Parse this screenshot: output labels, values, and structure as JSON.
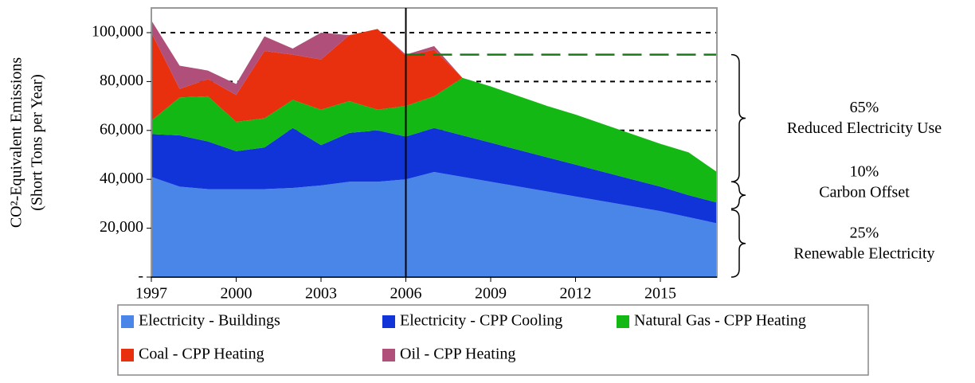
{
  "chart_data": {
    "type": "stacked_area",
    "y_label": [
      "CO²-Equivalent Emissions",
      "(Short Tons per Year)"
    ],
    "x": [
      1997,
      1998,
      1999,
      2000,
      2001,
      2002,
      2003,
      2004,
      2005,
      2006,
      2007,
      2008,
      2009,
      2010,
      2011,
      2012,
      2013,
      2014,
      2015,
      2016,
      2017
    ],
    "xlim": [
      1997,
      2017
    ],
    "xticks": [
      1997,
      2000,
      2003,
      2006,
      2009,
      2012,
      2015
    ],
    "ylim": [
      0,
      100000
    ],
    "yticks": [
      {
        "value": 0,
        "label": "-"
      },
      {
        "value": 20000,
        "label": "20,000"
      },
      {
        "value": 40000,
        "label": "40,000"
      },
      {
        "value": 60000,
        "label": "60,000"
      },
      {
        "value": 80000,
        "label": "80,000"
      },
      {
        "value": 100000,
        "label": "100,000"
      }
    ],
    "series": [
      {
        "name": "Electricity - Buildings",
        "color": "#4a86e8",
        "values": [
          41000,
          37000,
          36000,
          36000,
          36000,
          36500,
          37500,
          39000,
          39000,
          40000,
          43000,
          41000,
          39000,
          37000,
          35000,
          33000,
          31000,
          29000,
          27000,
          24500,
          22000
        ]
      },
      {
        "name": "Electricity - CPP Cooling",
        "color": "#1034d8",
        "values": [
          17500,
          21000,
          19500,
          15500,
          17000,
          24500,
          16500,
          20000,
          21000,
          17500,
          18000,
          17000,
          16000,
          15000,
          14000,
          13000,
          12000,
          11000,
          10000,
          9000,
          8500
        ]
      },
      {
        "name": "Natural Gas - CPP Heating",
        "color": "#14b814",
        "values": [
          5500,
          15500,
          18500,
          12000,
          12000,
          11500,
          14500,
          13000,
          8500,
          12500,
          13000,
          23500,
          23000,
          22000,
          21000,
          20500,
          19500,
          18500,
          17500,
          17500,
          12500
        ]
      },
      {
        "name": "Coal - CPP Heating",
        "color": "#e8300f",
        "values": [
          36000,
          3500,
          7000,
          11000,
          27500,
          18500,
          20500,
          27000,
          33000,
          20500,
          19000,
          0,
          0,
          0,
          0,
          0,
          0,
          0,
          0,
          0,
          0
        ]
      },
      {
        "name": "Oil - CPP Heating",
        "color": "#b0507a",
        "values": [
          5000,
          9500,
          3500,
          4500,
          6000,
          2500,
          11000,
          0,
          0,
          500,
          1500,
          0,
          0,
          0,
          0,
          0,
          0,
          0,
          0,
          0,
          0
        ]
      }
    ],
    "reference_lines": [
      {
        "value": 100000,
        "color": "#000000"
      },
      {
        "value": 80000,
        "color": "#000000"
      },
      {
        "value": 60000,
        "color": "#000000"
      }
    ],
    "target_line": {
      "value": 91000,
      "x_start": 2006,
      "color": "#1a7a1a"
    },
    "vline": 2006,
    "annotations": [
      {
        "text": [
          "65%",
          "Reduced Electricity Use"
        ],
        "range": [
          39000,
          91000
        ]
      },
      {
        "text": [
          "10%",
          "Carbon Offset"
        ],
        "range": [
          28000,
          39000
        ]
      },
      {
        "text": [
          "25%",
          "Renewable Electricity"
        ],
        "range": [
          0,
          27500
        ]
      }
    ],
    "legend": "bottom"
  }
}
